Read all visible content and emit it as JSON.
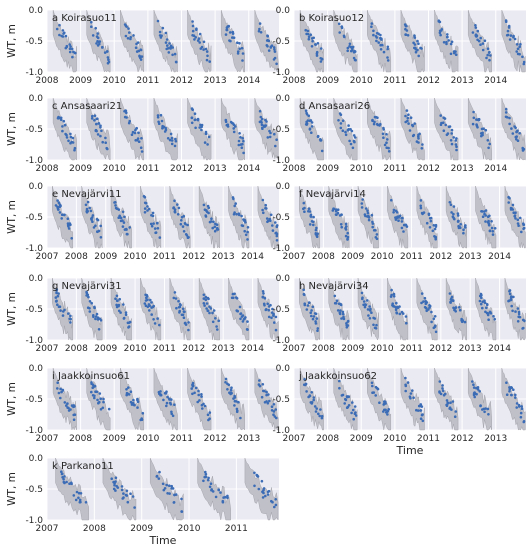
{
  "chart_data": [
    {
      "type": "scatter",
      "label": "a",
      "site": "Koirasuo11",
      "title": "a  Koirasuo11",
      "ylabel": "WT, m",
      "xlabel": "",
      "x_ticks": [
        "2008",
        "2009",
        "2010",
        "2011",
        "2012",
        "2013",
        "2014"
      ],
      "x_start": 2008.0,
      "x_end": 2014.9,
      "y_ticks": [
        "0.0",
        "-0.5",
        "-1.0"
      ],
      "ylim": [
        -1.0,
        0.0
      ],
      "background_band": "simulated range (grey)",
      "points": "observed WT (blue)",
      "marker_color": "#3b6cb5",
      "band_color": "#b0b0b8"
    },
    {
      "type": "scatter",
      "label": "b",
      "site": "Koirasuo12",
      "title": "b  Koirasuo12",
      "ylabel": "",
      "xlabel": "",
      "x_ticks": [
        "2008",
        "2009",
        "2010",
        "2011",
        "2012",
        "2013",
        "2014"
      ],
      "x_start": 2008.0,
      "x_end": 2014.9,
      "y_ticks": [
        "0.0",
        "-0.5",
        "-1.0"
      ],
      "ylim": [
        -1.0,
        0.0
      ]
    },
    {
      "type": "scatter",
      "label": "c",
      "site": "Ansasaari21",
      "title": "c  Ansasaari21",
      "ylabel": "WT, m",
      "xlabel": "",
      "x_ticks": [
        "2008",
        "2009",
        "2010",
        "2011",
        "2012",
        "2013",
        "2014"
      ],
      "x_start": 2008.0,
      "x_end": 2014.9,
      "y_ticks": [
        "0.0",
        "-0.5",
        "-1.0"
      ],
      "ylim": [
        -1.0,
        0.0
      ]
    },
    {
      "type": "scatter",
      "label": "d",
      "site": "Ansasaari26",
      "title": "d  Ansasaari26",
      "ylabel": "",
      "xlabel": "",
      "x_ticks": [
        "2008",
        "2009",
        "2010",
        "2011",
        "2012",
        "2013",
        "2014"
      ],
      "x_start": 2008.0,
      "x_end": 2014.9,
      "y_ticks": [
        "0.0",
        "-0.5",
        "-1.0"
      ],
      "ylim": [
        -1.0,
        0.0
      ]
    },
    {
      "type": "scatter",
      "label": "e",
      "site": "Nevajärvi11",
      "title": "e  Nevajärvi11",
      "ylabel": "WT, m",
      "xlabel": "",
      "x_ticks": [
        "2007",
        "2008",
        "2009",
        "2010",
        "2011",
        "2012",
        "2013",
        "2014"
      ],
      "x_start": 2007.0,
      "x_end": 2014.9,
      "y_ticks": [
        "0.0",
        "-0.5",
        "-1.0"
      ],
      "ylim": [
        -1.0,
        0.0
      ]
    },
    {
      "type": "scatter",
      "label": "f",
      "site": "Nevajärvi14",
      "title": "f  Nevajärvi14",
      "ylabel": "",
      "xlabel": "",
      "x_ticks": [
        "2007",
        "2008",
        "2009",
        "2010",
        "2011",
        "2012",
        "2013",
        "2014"
      ],
      "x_start": 2007.0,
      "x_end": 2014.9,
      "y_ticks": [
        "0.0",
        "-0.5",
        "-1.0"
      ],
      "ylim": [
        -1.0,
        0.0
      ]
    },
    {
      "type": "scatter",
      "label": "g",
      "site": "Nevajärvi31",
      "title": "g  Nevajärvi31",
      "ylabel": "WT, m",
      "xlabel": "",
      "x_ticks": [
        "2007",
        "2008",
        "2009",
        "2010",
        "2011",
        "2012",
        "2013",
        "2014"
      ],
      "x_start": 2007.0,
      "x_end": 2014.9,
      "y_ticks": [
        "0.0",
        "-0.5",
        "-1.0"
      ],
      "ylim": [
        -1.0,
        0.0
      ]
    },
    {
      "type": "scatter",
      "label": "h",
      "site": "Nevajärvi34",
      "title": "h  Nevajärvi34",
      "ylabel": "",
      "xlabel": "",
      "x_ticks": [
        "2007",
        "2008",
        "2009",
        "2010",
        "2011",
        "2012",
        "2013",
        "2014"
      ],
      "x_start": 2007.0,
      "x_end": 2014.9,
      "y_ticks": [
        "0.0",
        "-0.5",
        "-1.0"
      ],
      "ylim": [
        -1.0,
        0.0
      ]
    },
    {
      "type": "scatter",
      "label": "i",
      "site": "Jaakkoinsuo61",
      "title": "i  Jaakkoinsuo61",
      "ylabel": "WT, m",
      "xlabel": "",
      "x_ticks": [
        "2007",
        "2008",
        "2009",
        "2010",
        "2011",
        "2012",
        "2013"
      ],
      "x_start": 2007.0,
      "x_end": 2013.9,
      "y_ticks": [
        "0.0",
        "-0.5",
        "-1.0"
      ],
      "ylim": [
        -1.0,
        0.0
      ]
    },
    {
      "type": "scatter",
      "label": "j",
      "site": "Jaakkoinsuo62",
      "title": "j  Jaakkoinsuo62",
      "ylabel": "",
      "xlabel": "Time",
      "x_ticks": [
        "2007",
        "2008",
        "2009",
        "2010",
        "2011",
        "2012",
        "2013"
      ],
      "x_start": 2007.0,
      "x_end": 2013.9,
      "y_ticks": [
        "0.0",
        "-0.5",
        "-1.0"
      ],
      "ylim": [
        -1.0,
        0.0
      ]
    },
    {
      "type": "scatter",
      "label": "k",
      "site": "Parkano11",
      "title": "k  Parkano11",
      "ylabel": "WT, m",
      "xlabel": "Time",
      "x_ticks": [
        "2007",
        "2008",
        "2009",
        "2010",
        "2011"
      ],
      "x_start": 2007.0,
      "x_end": 2011.9,
      "y_ticks": [
        "0.0",
        "-0.5",
        "-1.0"
      ],
      "ylim": [
        -1.0,
        0.0
      ]
    }
  ]
}
